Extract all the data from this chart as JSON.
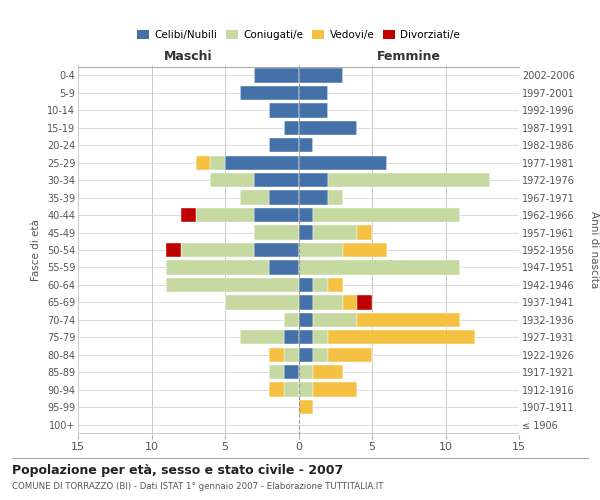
{
  "age_groups": [
    "100+",
    "95-99",
    "90-94",
    "85-89",
    "80-84",
    "75-79",
    "70-74",
    "65-69",
    "60-64",
    "55-59",
    "50-54",
    "45-49",
    "40-44",
    "35-39",
    "30-34",
    "25-29",
    "20-24",
    "15-19",
    "10-14",
    "5-9",
    "0-4"
  ],
  "birth_years": [
    "≤ 1906",
    "1907-1911",
    "1912-1916",
    "1917-1921",
    "1922-1926",
    "1927-1931",
    "1932-1936",
    "1937-1941",
    "1942-1946",
    "1947-1951",
    "1952-1956",
    "1957-1961",
    "1962-1966",
    "1967-1971",
    "1972-1976",
    "1977-1981",
    "1982-1986",
    "1987-1991",
    "1992-1996",
    "1997-2001",
    "2002-2006"
  ],
  "male": {
    "celibe": [
      0,
      0,
      0,
      1,
      0,
      1,
      0,
      0,
      0,
      2,
      3,
      0,
      3,
      2,
      3,
      5,
      2,
      1,
      2,
      4,
      3
    ],
    "coniugato": [
      0,
      0,
      1,
      1,
      1,
      3,
      1,
      5,
      9,
      7,
      5,
      3,
      4,
      2,
      3,
      1,
      0,
      0,
      0,
      0,
      0
    ],
    "vedovo": [
      0,
      0,
      1,
      0,
      1,
      0,
      0,
      0,
      0,
      0,
      0,
      0,
      0,
      0,
      0,
      1,
      0,
      0,
      0,
      0,
      0
    ],
    "divorziato": [
      0,
      0,
      0,
      0,
      0,
      0,
      0,
      0,
      0,
      0,
      1,
      0,
      1,
      0,
      0,
      0,
      0,
      0,
      0,
      0,
      0
    ]
  },
  "female": {
    "nubile": [
      0,
      0,
      0,
      0,
      1,
      1,
      1,
      1,
      1,
      0,
      0,
      1,
      1,
      2,
      2,
      6,
      1,
      4,
      2,
      2,
      3
    ],
    "coniugata": [
      0,
      0,
      1,
      1,
      1,
      1,
      3,
      2,
      1,
      11,
      3,
      3,
      10,
      1,
      11,
      0,
      0,
      0,
      0,
      0,
      0
    ],
    "vedova": [
      0,
      1,
      3,
      2,
      3,
      10,
      7,
      1,
      1,
      0,
      3,
      1,
      0,
      0,
      0,
      0,
      0,
      0,
      0,
      0,
      0
    ],
    "divorziata": [
      0,
      0,
      0,
      0,
      0,
      0,
      0,
      1,
      0,
      0,
      0,
      0,
      0,
      0,
      0,
      0,
      0,
      0,
      0,
      0,
      0
    ]
  },
  "colors": {
    "celibe": "#4472a8",
    "coniugato": "#c5d9a0",
    "vedovo": "#f5c142",
    "divorziato": "#c00000"
  },
  "xlim": 15,
  "title": "Popolazione per età, sesso e stato civile - 2007",
  "subtitle": "COMUNE DI TORRAZZO (BI) - Dati ISTAT 1° gennaio 2007 - Elaborazione TUTTITALIA.IT",
  "ylabel_left": "Fasce di età",
  "ylabel_right": "Anni di nascita",
  "xlabel_left": "Maschi",
  "xlabel_right": "Femmine",
  "legend_labels": [
    "Celibi/Nubili",
    "Coniugati/e",
    "Vedovi/e",
    "Divorziati/e"
  ],
  "grid_color": "#cccccc"
}
